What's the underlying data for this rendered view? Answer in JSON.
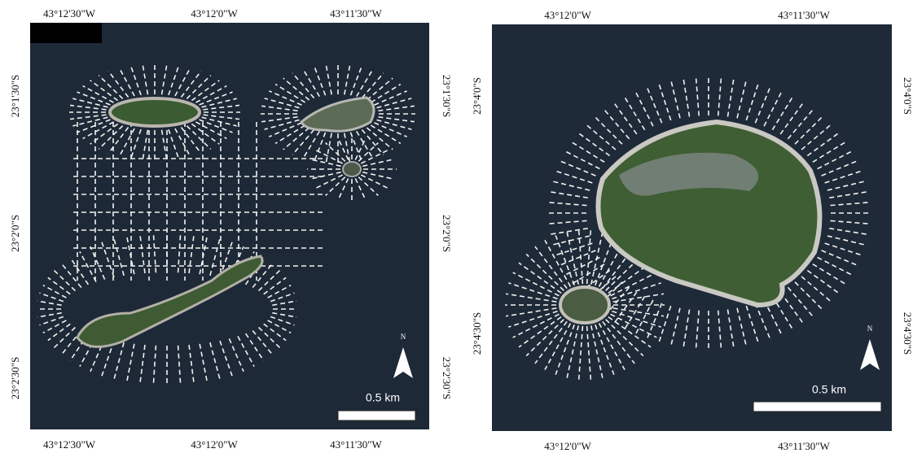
{
  "panels": [
    {
      "top_labels": [
        "43°12'30\"W",
        "43°12'0\"W",
        "43°11'30\"W"
      ],
      "bottom_labels": [
        "43°12'30\"W",
        "43°12'0\"W",
        "43°11'30\"W"
      ],
      "left_labels": [
        "23°1'30\"S",
        "23°2'0\"S",
        "23°2'30\"S"
      ],
      "right_labels": [
        "23°1'30\"S",
        "23°2'0\"S",
        "23°2'30\"S"
      ],
      "scale_label": "0.5 km",
      "north_label": "N"
    },
    {
      "top_labels": [
        "43°12'0\"W",
        "43°11'30\"W"
      ],
      "bottom_labels": [
        "43°12'0\"W",
        "43°11'30\"W"
      ],
      "left_labels": [
        "23°4'0\"S",
        "23°4'30\"S"
      ],
      "right_labels": [
        "23°4'0\"S",
        "23°4'30\"S"
      ],
      "scale_label": "0.5 km",
      "north_label": "N"
    }
  ]
}
